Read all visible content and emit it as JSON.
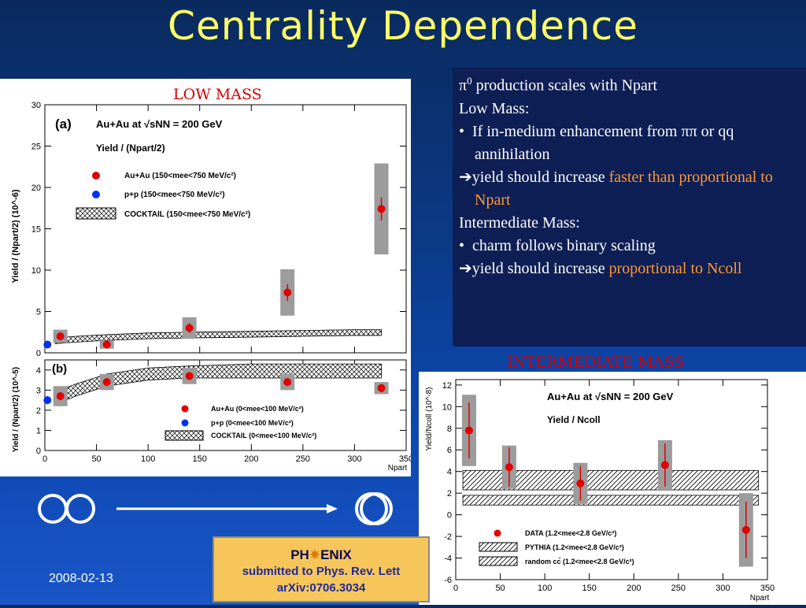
{
  "slide": {
    "title": "Centrality Dependence",
    "date": "2008-02-13"
  },
  "bullets": {
    "line1_pre": "π",
    "line1_sup": "0",
    "line1_post": " production scales with Npart",
    "low_mass_heading": "Low Mass:",
    "low_mass_bullet": "If in-medium enhancement from ππ or qq  annihilation",
    "low_mass_arrow_pre": "yield should increase ",
    "low_mass_arrow_highlight": "faster than proportional to Npart",
    "inter_mass_heading": "Intermediate Mass:",
    "inter_mass_bullet": "charm follows binary scaling",
    "inter_mass_arrow_pre": "yield should increase ",
    "inter_mass_arrow_highlight": "proportional to Ncoll",
    "bullet_glyph": "•",
    "arrow_glyph": "➔",
    "highlight_color": "#ff9933"
  },
  "footer": {
    "logo_pre": "PH",
    "logo_star": "✷",
    "logo_post": "ENIX",
    "line1": "submitted to Phys. Rev. Lett",
    "line2": "arXiv:0706.3034"
  },
  "chart_data": [
    {
      "type": "scatter",
      "panel_title": "LOW MASS",
      "panel_label": "(a)",
      "system": "Au+Au at √sNN = 200 GeV",
      "ylabel_line": "Yield / (Npart/2)",
      "ylabel": "Yield / (Npart/2) (10^-6)",
      "ylim": [
        0,
        30
      ],
      "yticks": [
        0,
        5,
        10,
        15,
        20,
        25,
        30
      ],
      "legend": [
        "Au+Au (150<mee<750 MeV/c²)",
        "p+p (150<mee<750 MeV/c²)",
        "COCKTAIL (150<mee<750 MeV/c²)"
      ],
      "series": [
        {
          "name": "Au+Au (150<mee<750 MeV/c²)",
          "color": "#e00000",
          "x": [
            15,
            60,
            140,
            235,
            326
          ],
          "y": [
            2.0,
            1.0,
            3.0,
            7.3,
            17.4
          ],
          "sys": [
            0.8,
            0.5,
            1.3,
            2.8,
            5.5
          ],
          "err": [
            0.3,
            0.3,
            0.6,
            1.0,
            1.4
          ]
        },
        {
          "name": "p+p (150<mee<750 MeV/c²)",
          "color": "#0033ee",
          "x": [
            2.5
          ],
          "y": [
            1.0
          ],
          "sys": [
            0.3
          ],
          "err": [
            0.2
          ]
        }
      ],
      "cocktail": {
        "x": [
          10,
          30,
          60,
          100,
          140,
          200,
          250,
          300,
          326
        ],
        "lo": [
          1.1,
          1.3,
          1.5,
          1.7,
          1.8,
          1.9,
          2.0,
          2.1,
          2.1
        ],
        "hi": [
          1.8,
          2.0,
          2.2,
          2.4,
          2.5,
          2.6,
          2.7,
          2.8,
          2.8
        ]
      }
    },
    {
      "type": "scatter",
      "panel_label": "(b)",
      "ylabel_line": "Yield / (Npart/2)",
      "ylabel": "Yield / (Npart/2) (10^-5)",
      "xlabel": "Npart",
      "xlim": [
        0,
        350
      ],
      "xticks": [
        0,
        50,
        100,
        150,
        200,
        250,
        300,
        350
      ],
      "ylim": [
        0,
        4.5
      ],
      "yticks": [
        0,
        1,
        2,
        3,
        4
      ],
      "legend": [
        "Au+Au (0<mee<100 MeV/c²)",
        "p+p (0<mee<100 MeV/c²)",
        "COCKTAIL (0<mee<100 MeV/c²)"
      ],
      "series": [
        {
          "name": "Au+Au (0<mee<100 MeV/c²)",
          "color": "#e00000",
          "x": [
            15,
            60,
            140,
            235,
            326
          ],
          "y": [
            2.7,
            3.4,
            3.7,
            3.4,
            3.1
          ],
          "sys": [
            0.5,
            0.4,
            0.4,
            0.4,
            0.3
          ],
          "err": [
            0.2,
            0.2,
            0.2,
            0.2,
            0.2
          ]
        },
        {
          "name": "p+p (0<mee<100 MeV/c²)",
          "color": "#0033ee",
          "x": [
            2.5
          ],
          "y": [
            2.5
          ],
          "sys": [
            0.3
          ],
          "err": [
            0.2
          ]
        }
      ],
      "cocktail": {
        "x": [
          10,
          30,
          60,
          100,
          140,
          200,
          250,
          300,
          326
        ],
        "lo": [
          2.3,
          2.7,
          3.2,
          3.5,
          3.6,
          3.6,
          3.6,
          3.6,
          3.6
        ],
        "hi": [
          2.9,
          3.3,
          3.8,
          4.1,
          4.2,
          4.3,
          4.3,
          4.3,
          4.3
        ]
      }
    },
    {
      "type": "scatter",
      "panel_title": "INTERMEDIATE MASS",
      "system": "Au+Au at √sNN = 200 GeV",
      "sublabel": "Yield / Ncoll",
      "ylabel": "Yield/Ncoll (10^-8)",
      "xlabel": "Npart",
      "xlim": [
        0,
        350
      ],
      "xticks": [
        0,
        50,
        100,
        150,
        200,
        250,
        300,
        350
      ],
      "ylim": [
        -6,
        12.5
      ],
      "yticks": [
        -6,
        -4,
        -2,
        0,
        2,
        4,
        6,
        8,
        10,
        12
      ],
      "legend": [
        "DATA (1.2<mee<2.8 GeV/c²)",
        "PYTHIA (1.2<mee<2.8 GeV/c²)",
        "random cc̄ (1.2<mee<2.8 GeV/c²)"
      ],
      "series": [
        {
          "name": "DATA (1.2<mee<2.8 GeV/c²)",
          "color": "#e00000",
          "x": [
            15,
            60,
            140,
            235,
            326
          ],
          "y": [
            7.8,
            4.4,
            2.9,
            4.6,
            -1.4
          ],
          "sys": [
            3.3,
            2.0,
            1.9,
            2.3,
            3.4
          ],
          "err": [
            2.6,
            1.8,
            1.6,
            2.0,
            2.6
          ]
        }
      ],
      "bands": [
        {
          "name": "PYTHIA (1.2<mee<2.8 GeV/c²)",
          "lo": 2.3,
          "hi": 4.1
        },
        {
          "name": "random cc̄ (1.2<mee<2.8 GeV/c²)",
          "lo": 0.9,
          "hi": 1.8
        }
      ]
    }
  ]
}
